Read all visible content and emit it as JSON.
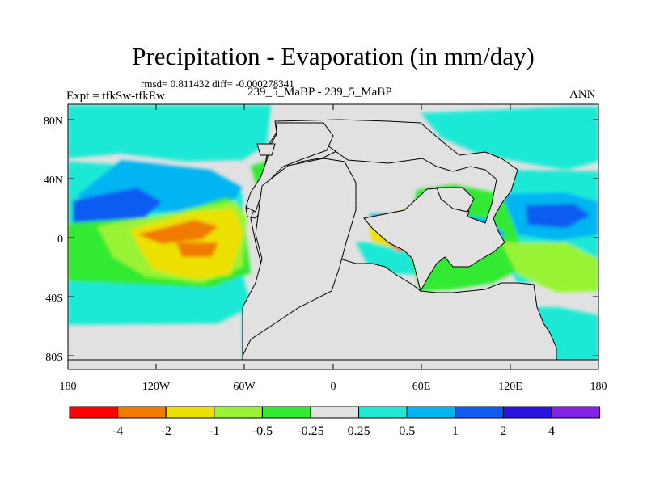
{
  "header": {
    "title": "Precipitation - Evaporation (in mm/day)",
    "stats": "rmsd= 0.811432 diff= -0.000278341",
    "experiment": "Expt = tfkSw-tfkEw",
    "case": "239_5_MaBP - 239_5_MaBP",
    "season": "ANN"
  },
  "map": {
    "x_ticks": [
      "180",
      "120W",
      "60W",
      "0",
      "60E",
      "120E",
      "180"
    ],
    "y_ticks": [
      "80N",
      "40N",
      "0",
      "40S",
      "80S"
    ],
    "land_color": "#e1e1e1"
  },
  "colorbar": {
    "colors": [
      "#ff0000",
      "#f17a00",
      "#ece100",
      "#99f334",
      "#32ea32",
      "#e1e1e1",
      "#1ee9d5",
      "#02b5f1",
      "#105bf1",
      "#2c13e3",
      "#8521e7"
    ],
    "labels": [
      "-4",
      "-2",
      "-1",
      "-0.5",
      "-0.25",
      "0.25",
      "0.5",
      "1",
      "2",
      "4"
    ]
  }
}
